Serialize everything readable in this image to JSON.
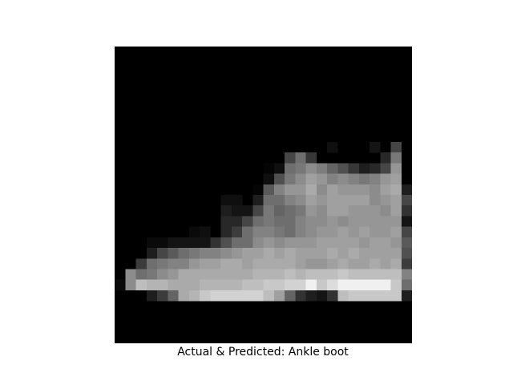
{
  "figure": {
    "caption": "Actual & Predicted: Ankle boot",
    "background_color": "#ffffff",
    "image": {
      "colormap": "grayscale",
      "background_color": "#000000",
      "rows": 28,
      "cols": 28,
      "pixels": [
        [
          0,
          0,
          0,
          0,
          0,
          0,
          0,
          0,
          0,
          0,
          0,
          0,
          0,
          0,
          0,
          0,
          0,
          0,
          0,
          0,
          0,
          0,
          0,
          0,
          0,
          0,
          0,
          0
        ],
        [
          0,
          0,
          0,
          0,
          0,
          0,
          0,
          0,
          0,
          0,
          0,
          0,
          0,
          0,
          0,
          0,
          0,
          0,
          0,
          0,
          0,
          0,
          0,
          0,
          0,
          0,
          0,
          0
        ],
        [
          0,
          0,
          0,
          0,
          0,
          0,
          0,
          0,
          0,
          0,
          0,
          0,
          0,
          0,
          0,
          0,
          0,
          0,
          0,
          0,
          0,
          0,
          0,
          0,
          0,
          0,
          0,
          0
        ],
        [
          0,
          0,
          0,
          0,
          0,
          0,
          0,
          0,
          0,
          0,
          0,
          0,
          0,
          0,
          0,
          0,
          0,
          0,
          0,
          0,
          0,
          0,
          0,
          0,
          0,
          0,
          0,
          0
        ],
        [
          0,
          0,
          0,
          0,
          0,
          0,
          0,
          0,
          0,
          0,
          0,
          0,
          0,
          0,
          0,
          0,
          0,
          0,
          0,
          0,
          0,
          0,
          0,
          0,
          0,
          0,
          0,
          0
        ],
        [
          0,
          0,
          0,
          0,
          0,
          0,
          0,
          0,
          0,
          0,
          0,
          0,
          0,
          0,
          0,
          0,
          0,
          0,
          0,
          0,
          0,
          0,
          0,
          0,
          0,
          0,
          0,
          0
        ],
        [
          0,
          0,
          0,
          0,
          0,
          0,
          0,
          0,
          0,
          0,
          0,
          0,
          0,
          0,
          0,
          0,
          0,
          0,
          0,
          0,
          0,
          0,
          0,
          0,
          0,
          0,
          0,
          0
        ],
        [
          0,
          0,
          0,
          0,
          0,
          0,
          0,
          0,
          0,
          0,
          0,
          0,
          0,
          0,
          0,
          0,
          0,
          0,
          0,
          0,
          0,
          0,
          0,
          0,
          0,
          0,
          0,
          0
        ],
        [
          0,
          0,
          0,
          0,
          0,
          0,
          0,
          0,
          0,
          0,
          0,
          0,
          0,
          0,
          0,
          0,
          0,
          0,
          0,
          0,
          0,
          0,
          0,
          0,
          0,
          0,
          0,
          0
        ],
        [
          0,
          0,
          0,
          0,
          0,
          0,
          0,
          0,
          0,
          0,
          0,
          0,
          0,
          0,
          0,
          0,
          0,
          0,
          0,
          0,
          15,
          0,
          0,
          0,
          20,
          0,
          70,
          0
        ],
        [
          0,
          0,
          0,
          0,
          0,
          0,
          0,
          0,
          0,
          0,
          0,
          0,
          0,
          0,
          0,
          0,
          70,
          110,
          55,
          0,
          0,
          0,
          0,
          0,
          0,
          40,
          120,
          0
        ],
        [
          0,
          0,
          0,
          0,
          0,
          0,
          0,
          0,
          0,
          0,
          0,
          0,
          0,
          0,
          5,
          15,
          110,
          120,
          140,
          125,
          100,
          80,
          55,
          30,
          40,
          70,
          150,
          0
        ],
        [
          0,
          0,
          0,
          0,
          0,
          0,
          0,
          0,
          0,
          0,
          0,
          0,
          0,
          0,
          15,
          80,
          120,
          140,
          160,
          150,
          130,
          140,
          130,
          120,
          130,
          150,
          160,
          0
        ],
        [
          0,
          0,
          0,
          0,
          0,
          0,
          0,
          0,
          0,
          0,
          0,
          0,
          0,
          5,
          90,
          130,
          150,
          150,
          170,
          140,
          160,
          150,
          150,
          150,
          140,
          160,
          170,
          30
        ],
        [
          0,
          0,
          0,
          0,
          0,
          0,
          0,
          0,
          0,
          0,
          15,
          15,
          0,
          30,
          110,
          110,
          130,
          140,
          160,
          150,
          160,
          160,
          160,
          160,
          140,
          150,
          160,
          70
        ],
        [
          0,
          0,
          0,
          0,
          0,
          0,
          0,
          0,
          0,
          0,
          30,
          20,
          20,
          70,
          120,
          100,
          110,
          120,
          150,
          140,
          160,
          160,
          150,
          150,
          150,
          140,
          160,
          50
        ],
        [
          0,
          0,
          0,
          0,
          0,
          0,
          0,
          0,
          0,
          0,
          40,
          40,
          70,
          110,
          120,
          110,
          110,
          130,
          140,
          140,
          150,
          140,
          150,
          150,
          150,
          150,
          150,
          20
        ],
        [
          0,
          0,
          0,
          0,
          0,
          0,
          0,
          10,
          15,
          0,
          40,
          60,
          110,
          130,
          130,
          120,
          110,
          130,
          140,
          150,
          150,
          160,
          150,
          160,
          150,
          150,
          160,
          70
        ],
        [
          0,
          0,
          0,
          10,
          10,
          20,
          20,
          20,
          20,
          50,
          80,
          110,
          110,
          140,
          150,
          140,
          150,
          150,
          150,
          160,
          160,
          160,
          160,
          150,
          160,
          160,
          150,
          90
        ],
        [
          0,
          0,
          0,
          30,
          70,
          90,
          110,
          120,
          130,
          130,
          140,
          150,
          160,
          160,
          170,
          160,
          170,
          160,
          160,
          160,
          170,
          160,
          170,
          160,
          160,
          160,
          160,
          80
        ],
        [
          0,
          0,
          60,
          110,
          120,
          130,
          130,
          150,
          160,
          160,
          170,
          170,
          160,
          170,
          170,
          170,
          170,
          160,
          150,
          150,
          160,
          170,
          160,
          160,
          170,
          160,
          170,
          60
        ],
        [
          0,
          140,
          110,
          120,
          140,
          150,
          170,
          170,
          170,
          170,
          170,
          170,
          170,
          180,
          180,
          180,
          190,
          180,
          190,
          190,
          190,
          200,
          190,
          190,
          190,
          190,
          190,
          130
        ],
        [
          10,
          140,
          190,
          180,
          180,
          170,
          170,
          170,
          180,
          180,
          180,
          180,
          190,
          190,
          200,
          200,
          210,
          210,
          240,
          200,
          220,
          240,
          240,
          240,
          240,
          240,
          200,
          110
        ],
        [
          0,
          0,
          0,
          30,
          60,
          100,
          170,
          180,
          200,
          210,
          210,
          210,
          210,
          210,
          190,
          160,
          100,
          50,
          30,
          20,
          50,
          190,
          200,
          200,
          200,
          200,
          200,
          30
        ],
        [
          0,
          0,
          0,
          0,
          0,
          0,
          0,
          0,
          0,
          0,
          0,
          0,
          0,
          0,
          0,
          0,
          0,
          0,
          0,
          0,
          0,
          0,
          0,
          0,
          0,
          0,
          0,
          0
        ],
        [
          0,
          0,
          0,
          0,
          0,
          0,
          0,
          0,
          0,
          0,
          0,
          0,
          0,
          0,
          0,
          0,
          0,
          0,
          0,
          0,
          0,
          0,
          0,
          0,
          0,
          0,
          0,
          0
        ],
        [
          0,
          0,
          0,
          0,
          0,
          0,
          0,
          0,
          0,
          0,
          0,
          0,
          0,
          0,
          0,
          0,
          0,
          0,
          0,
          0,
          0,
          0,
          0,
          0,
          0,
          0,
          0,
          0
        ],
        [
          0,
          0,
          0,
          0,
          0,
          0,
          0,
          0,
          0,
          0,
          0,
          0,
          0,
          0,
          0,
          0,
          0,
          0,
          0,
          0,
          0,
          0,
          0,
          0,
          0,
          0,
          0,
          0
        ]
      ]
    }
  }
}
